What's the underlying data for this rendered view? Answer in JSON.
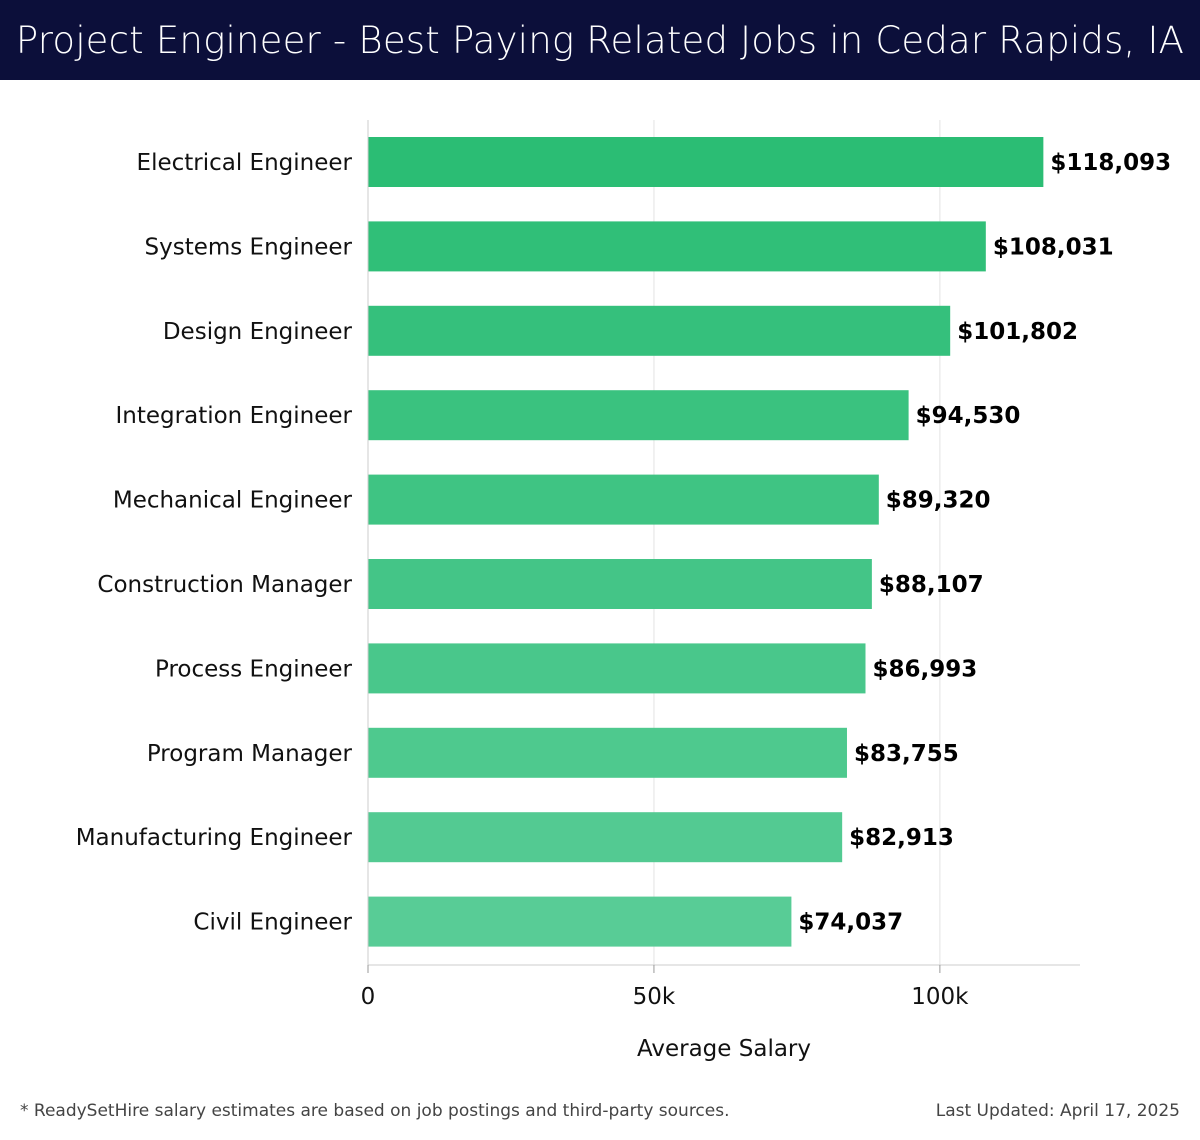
{
  "header": {
    "title": "Project Engineer - Best Paying Related Jobs in Cedar Rapids, IA"
  },
  "chart_data": {
    "type": "bar",
    "orientation": "horizontal",
    "title": "Project Engineer - Best Paying Related Jobs in Cedar Rapids, IA",
    "xlabel": "Average Salary",
    "ylabel": "",
    "categories": [
      "Electrical Engineer",
      "Systems Engineer",
      "Design Engineer",
      "Integration Engineer",
      "Mechanical Engineer",
      "Construction Manager",
      "Process Engineer",
      "Program Manager",
      "Manufacturing Engineer",
      "Civil Engineer"
    ],
    "values": [
      118093,
      108031,
      101802,
      94530,
      89320,
      88107,
      86993,
      83755,
      82913,
      74037
    ],
    "value_labels": [
      "$118,093",
      "$108,031",
      "$101,802",
      "$94,530",
      "$89,320",
      "$88,107",
      "$86,993",
      "$83,755",
      "$82,913",
      "$74,037"
    ],
    "xlim": [
      0,
      124500
    ],
    "xticks": [
      0,
      50000,
      100000
    ],
    "xtick_labels": [
      "0",
      "50k",
      "100k"
    ],
    "grid": true,
    "bar_color_start": "#2bbd74",
    "bar_color_end": "#58cc96"
  },
  "footer": {
    "note": "* ReadySetHire salary estimates are based on job postings and third-party sources.",
    "updated": "Last Updated: April 17, 2025"
  }
}
